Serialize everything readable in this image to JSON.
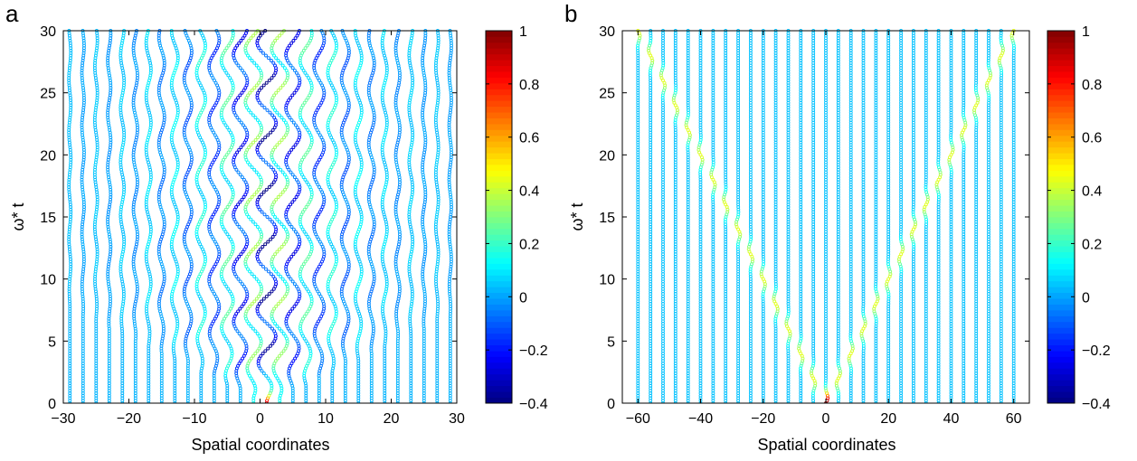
{
  "chart_data": [
    {
      "panel_label": "a",
      "type": "scatter",
      "xlabel": "Spatial coordinates",
      "ylabel": "ω* t",
      "xlim": [
        -30,
        30
      ],
      "ylim": [
        0,
        30
      ],
      "xticks": [
        -30,
        -20,
        -10,
        0,
        10,
        20,
        30
      ],
      "yticks": [
        0,
        5,
        10,
        15,
        20,
        25,
        30
      ],
      "sites": {
        "start": -29,
        "end": 29,
        "step": 2
      },
      "time_step": 0.2,
      "excited_site": 1,
      "dynamics": "localized",
      "colorbar": {
        "min": -0.4,
        "max": 1,
        "ticks": [
          -0.4,
          -0.2,
          0,
          0.2,
          0.4,
          0.6,
          0.8,
          1
        ],
        "colormap": "jet"
      }
    },
    {
      "panel_label": "b",
      "type": "scatter",
      "xlabel": "Spatial coordinates",
      "ylabel": "ω* t",
      "xlim": [
        -65,
        65
      ],
      "ylim": [
        0,
        30
      ],
      "xticks": [
        -60,
        -40,
        -20,
        0,
        20,
        40,
        60
      ],
      "yticks": [
        0,
        5,
        10,
        15,
        20,
        25,
        30
      ],
      "sites": {
        "start": -60,
        "end": 60,
        "step": 4
      },
      "time_step": 0.2,
      "excited_site": 0,
      "dynamics": "ballistic",
      "front_speed": 2,
      "colorbar": {
        "min": -0.4,
        "max": 1,
        "ticks": [
          -0.4,
          -0.2,
          0,
          0.2,
          0.4,
          0.6,
          0.8,
          1
        ],
        "colormap": "jet"
      }
    }
  ]
}
